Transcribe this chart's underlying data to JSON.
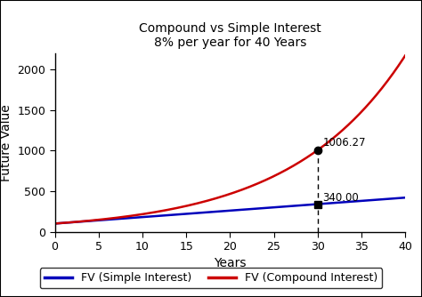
{
  "title_line1": "Compound vs Simple Interest",
  "title_line2": "8% per year for 40 Years",
  "xlabel": "Years",
  "ylabel": "Future Value",
  "rate": 0.08,
  "principal": 100,
  "years": 40,
  "xlim": [
    0,
    40
  ],
  "ylim": [
    0,
    2200
  ],
  "xticks": [
    0,
    5,
    10,
    15,
    20,
    25,
    30,
    35,
    40
  ],
  "yticks": [
    0,
    500,
    1000,
    1500,
    2000
  ],
  "annotation_year": 30,
  "compound_value_at_30": 1006.27,
  "simple_value_at_30": 340.0,
  "compound_label": "1006.27",
  "simple_label": "340.00",
  "simple_color": "#0000bb",
  "compound_color": "#cc0000",
  "legend_simple": "FV (Simple Interest)",
  "legend_compound": "FV (Compound Interest)",
  "background_color": "#ffffff",
  "plot_bg_color": "#ffffff",
  "title_fontsize": 10,
  "axis_label_fontsize": 10,
  "tick_fontsize": 9,
  "legend_fontsize": 9,
  "line_width": 1.8
}
